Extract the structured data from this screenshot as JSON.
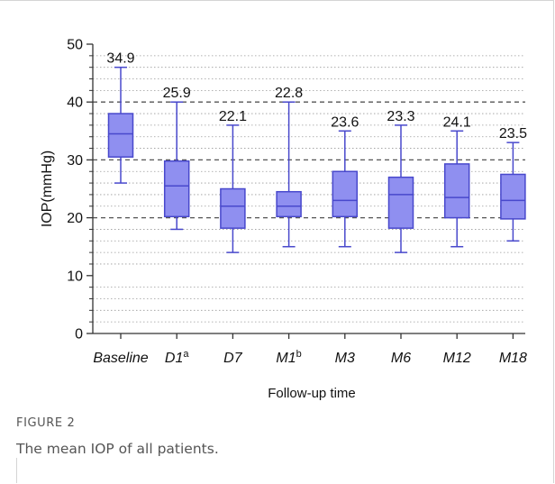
{
  "chart_data": {
    "type": "box",
    "title": "",
    "xlabel": "Follow-up time",
    "ylabel": "IOP(mmHg)",
    "ylim": [
      0,
      50
    ],
    "y_ticks": [
      0,
      10,
      20,
      30,
      40,
      50
    ],
    "y_tick_labels": [
      "0",
      "10",
      "20",
      "30",
      "40",
      "50"
    ],
    "major_grid": [
      20,
      30,
      40
    ],
    "minor_grid_step": 2,
    "categories": [
      {
        "label": "Baseline",
        "sup": ""
      },
      {
        "label": "D1",
        "sup": "a"
      },
      {
        "label": "D7",
        "sup": ""
      },
      {
        "label": "M1",
        "sup": "b"
      },
      {
        "label": "M3",
        "sup": ""
      },
      {
        "label": "M6",
        "sup": ""
      },
      {
        "label": "M12",
        "sup": ""
      },
      {
        "label": "M18",
        "sup": ""
      }
    ],
    "boxes": [
      {
        "min": 26,
        "q1": 30.5,
        "median": 34.5,
        "q3": 38,
        "max": 46,
        "mean_label": "34.9"
      },
      {
        "min": 18,
        "q1": 20.2,
        "median": 25.5,
        "q3": 29.8,
        "max": 40,
        "mean_label": "25.9"
      },
      {
        "min": 14,
        "q1": 18.2,
        "median": 22,
        "q3": 25,
        "max": 36,
        "mean_label": "22.1"
      },
      {
        "min": 15,
        "q1": 20.2,
        "median": 22,
        "q3": 24.5,
        "max": 40,
        "mean_label": "22.8"
      },
      {
        "min": 15,
        "q1": 20.2,
        "median": 23,
        "q3": 28,
        "max": 35,
        "mean_label": "23.6"
      },
      {
        "min": 14,
        "q1": 18.2,
        "median": 24,
        "q3": 27,
        "max": 36,
        "mean_label": "23.3"
      },
      {
        "min": 15,
        "q1": 20,
        "median": 23.5,
        "q3": 29.3,
        "max": 35,
        "mean_label": "24.1"
      },
      {
        "min": 16,
        "q1": 19.8,
        "median": 23,
        "q3": 27.5,
        "max": 33,
        "mean_label": "23.5"
      }
    ],
    "colors": {
      "box_fill": "#8f8ff0",
      "box_stroke": "#4848cc",
      "axis": "#333333"
    }
  },
  "caption": {
    "label": "FIGURE 2",
    "text": "The mean IOP of all patients."
  }
}
